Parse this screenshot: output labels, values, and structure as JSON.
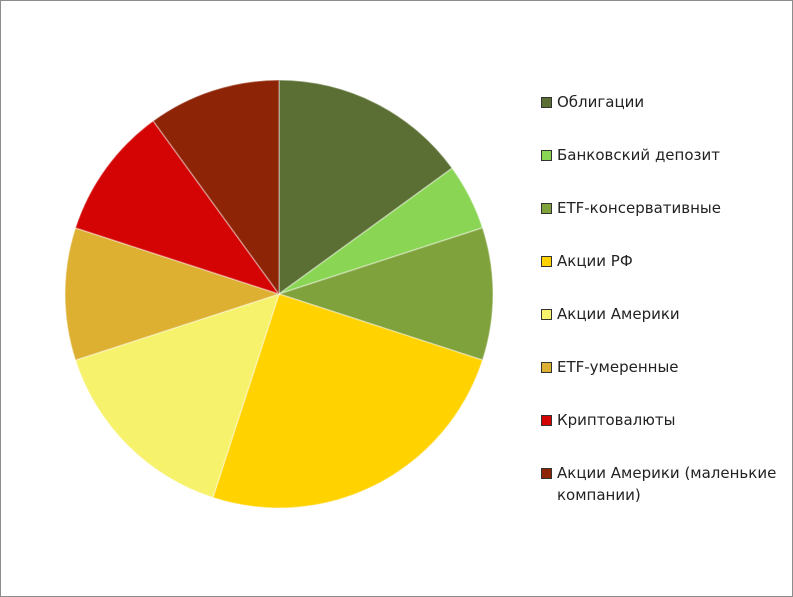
{
  "chart_data": {
    "type": "pie",
    "categories": [
      "Облигации",
      "Банковский депозит",
      "ETF-консервативные",
      "Акции РФ",
      "Акции Америки",
      "ETF-умеренные",
      "Криптовалюты",
      "Акции Америки (маленькие компании)"
    ],
    "values": [
      15,
      5,
      10,
      25,
      15,
      10,
      10,
      10
    ],
    "colors": [
      "#5b6f34",
      "#8ad654",
      "#80a23c",
      "#ffd200",
      "#f6f26c",
      "#ddb032",
      "#d40404",
      "#8e2406"
    ],
    "legend": "right"
  }
}
